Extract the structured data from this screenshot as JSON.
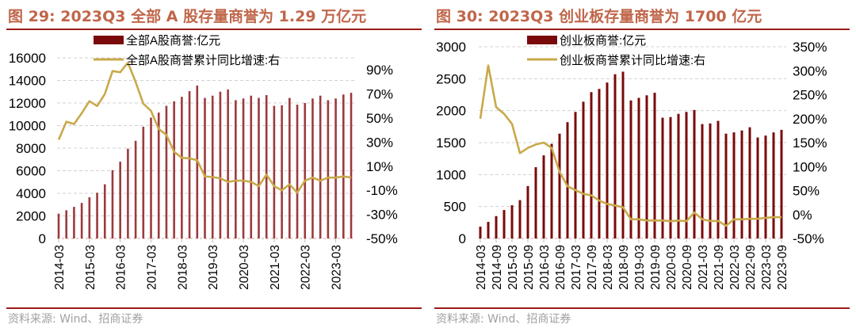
{
  "colors": {
    "title": "#c0664a",
    "rule": "#9e1b1b",
    "bar_left": "#9c3a3e",
    "bar_right": "#7a0a0a",
    "line": "#c9a94a",
    "source": "#a0a0a0"
  },
  "left": {
    "title": "图 29:  2023Q3 全部 A 股存量商誉为 1.29 万亿元",
    "source": "资料来源:  Wind、招商证券"
  },
  "right": {
    "title": "图 30:   2023Q3 创业板存量商誉为 1700 亿元",
    "source": "资料来源:  Wind、招商证券"
  },
  "chart_data": [
    {
      "type": "bar+line",
      "title": "图 29:  2023Q3 全部 A 股存量商誉为 1.29 万亿元",
      "x_tick_labels": [
        "2014-03",
        "2015-03",
        "2016-03",
        "2017-03",
        "2018-03",
        "2019-03",
        "2020-03",
        "2021-03",
        "2022-03",
        "2023-03"
      ],
      "x_tick_every": 4,
      "y_ticks": [
        "0",
        "2000",
        "4000",
        "6000",
        "8000",
        "10000",
        "12000",
        "14000",
        "16000"
      ],
      "ylim": [
        0,
        16000
      ],
      "y2_ticks": [
        "-50%",
        "-30%",
        "-10%",
        "10%",
        "30%",
        "50%",
        "70%",
        "90%"
      ],
      "y2lim": [
        -50,
        100
      ],
      "grid": true,
      "legend": "top-center",
      "series": [
        {
          "name": "全部A股商誉:亿元",
          "type": "bar",
          "axis": "left",
          "values": [
            2200,
            2500,
            2800,
            3150,
            3650,
            4050,
            4800,
            6050,
            6800,
            7950,
            8650,
            9900,
            10700,
            11150,
            11750,
            12150,
            12550,
            13050,
            13550,
            12450,
            12650,
            13000,
            13200,
            12250,
            12400,
            12650,
            12450,
            12700,
            11750,
            11800,
            12450,
            11850,
            12000,
            12400,
            12650,
            12250,
            12400,
            12750,
            12900
          ]
        },
        {
          "name": "全部A股商誉累计同比增速:右",
          "type": "line",
          "axis": "right",
          "values": [
            32,
            47,
            45,
            54,
            64,
            60,
            70,
            89,
            88,
            96,
            80,
            62,
            56,
            41,
            36,
            22,
            17,
            16.5,
            15,
            1.5,
            1,
            0,
            -3,
            -2,
            -2,
            -3,
            -6.5,
            3,
            -6.5,
            -10,
            -5,
            -12,
            -2,
            0.5,
            -2,
            0.5,
            0.5,
            1.5,
            0.5
          ]
        }
      ]
    },
    {
      "type": "bar+line",
      "title": "图 30:   2023Q3 创业板存量商誉为 1700 亿元",
      "x_tick_labels": [
        "2014-03",
        "2014-09",
        "2015-03",
        "2015-09",
        "2016-03",
        "2016-09",
        "2017-03",
        "2017-09",
        "2018-03",
        "2018-09",
        "2019-03",
        "2019-09",
        "2020-03",
        "2020-09",
        "2021-03",
        "2021-09",
        "2022-03",
        "2022-09",
        "2023-03",
        "2023-09"
      ],
      "x_tick_every": 2,
      "y_ticks": [
        "0",
        "500",
        "1000",
        "1500",
        "2000",
        "2500",
        "3000"
      ],
      "ylim": [
        0,
        3000
      ],
      "y2_ticks": [
        "-50%",
        "0%",
        "50%",
        "100%",
        "150%",
        "200%",
        "250%",
        "300%",
        "350%"
      ],
      "y2lim": [
        -50,
        350
      ],
      "grid": true,
      "legend": "top-center",
      "series": [
        {
          "name": "创业板商誉:亿元",
          "type": "bar",
          "axis": "left",
          "values": [
            185,
            260,
            350,
            445,
            520,
            600,
            820,
            1115,
            1300,
            1480,
            1640,
            1820,
            1980,
            2140,
            2290,
            2340,
            2440,
            2570,
            2610,
            2160,
            2200,
            2240,
            2280,
            1890,
            1900,
            1950,
            1980,
            2010,
            1790,
            1800,
            1840,
            1640,
            1660,
            1690,
            1740,
            1580,
            1610,
            1660,
            1700
          ]
        },
        {
          "name": "创业板商誉累计同比增速:右",
          "type": "line",
          "axis": "right",
          "values": [
            200,
            311,
            224,
            210,
            189,
            128,
            139,
            146,
            150,
            139,
            89,
            59,
            51,
            43,
            40,
            29,
            22,
            19,
            15,
            -10,
            -10,
            -12.5,
            -12.5,
            -12.5,
            -14,
            -12.5,
            -14,
            4,
            -10,
            -13.5,
            -13.5,
            -23.5,
            -10,
            -10,
            -9,
            -9,
            -7,
            -5.5,
            -5.5
          ]
        }
      ]
    }
  ]
}
